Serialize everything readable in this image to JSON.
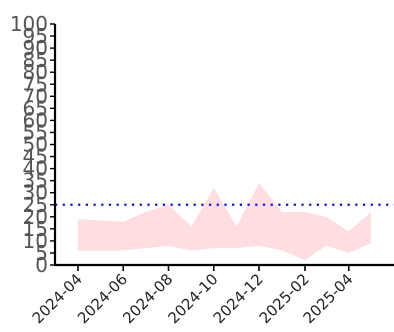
{
  "chart_data": {
    "type": "area",
    "title": "",
    "xlabel": "",
    "ylabel": "",
    "ylim": [
      0,
      100
    ],
    "xlim": [
      "2024-03-01",
      "2025-06-01"
    ],
    "yticks": [
      0,
      5,
      10,
      15,
      20,
      25,
      30,
      35,
      40,
      45,
      50,
      55,
      60,
      65,
      70,
      75,
      80,
      85,
      90,
      95,
      100
    ],
    "xticks": [
      "2024-04",
      "2024-06",
      "2024-08",
      "2024-10",
      "2024-12",
      "2025-02",
      "2025-04"
    ],
    "grid": false,
    "legend": "none",
    "series": [
      {
        "type": "band",
        "color": "#ffdde1",
        "x": [
          "2024-04-01",
          "2024-05-01",
          "2024-06-01",
          "2024-07-01",
          "2024-08-01",
          "2024-09-01",
          "2024-10-01",
          "2024-11-01",
          "2024-12-01",
          "2025-01-01",
          "2025-02-01",
          "2025-03-01",
          "2025-04-01",
          "2025-05-01"
        ],
        "upper": [
          19,
          18.5,
          18,
          22,
          25,
          16,
          32,
          16,
          34,
          22,
          22,
          20,
          14,
          22
        ],
        "lower": [
          6,
          6,
          6,
          7,
          8,
          6,
          7,
          7,
          8,
          6,
          2,
          8,
          5,
          9
        ]
      },
      {
        "type": "hline",
        "value": 25,
        "color": "#1010cc",
        "style": "dotted"
      }
    ]
  }
}
